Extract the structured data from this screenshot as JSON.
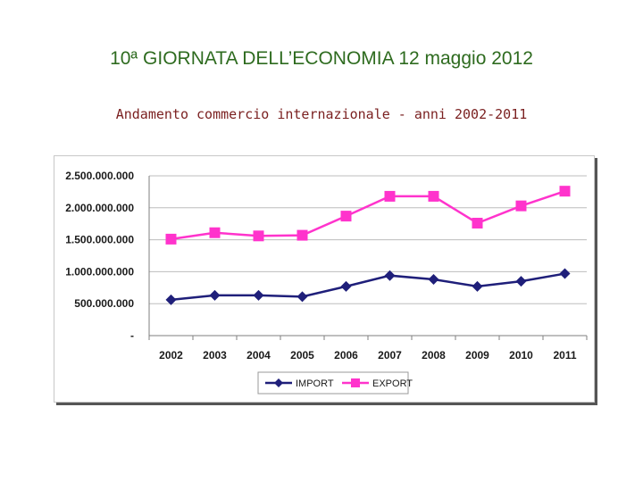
{
  "header": {
    "title": "10ª GIORNATA DELL’ECONOMIA  12 maggio 2012",
    "subtitle": "Andamento commercio internazionale - anni 2002-2011"
  },
  "chart_data": {
    "type": "line",
    "title": "",
    "xlabel": "",
    "ylabel": "",
    "categories": [
      "2002",
      "2003",
      "2004",
      "2005",
      "2006",
      "2007",
      "2008",
      "2009",
      "2010",
      "2011"
    ],
    "ylim": [
      0,
      2500000000
    ],
    "yticks": [
      0,
      500000000,
      1000000000,
      1500000000,
      2000000000,
      2500000000
    ],
    "ytick_labels": [
      "-",
      "500.000.000",
      "1.000.000.000",
      "1.500.000.000",
      "2.000.000.000",
      "2.500.000.000"
    ],
    "grid": true,
    "legend_position": "bottom",
    "series": [
      {
        "name": "IMPORT",
        "color": "#1f1f7a",
        "marker": "diamond",
        "values": [
          560000000,
          630000000,
          630000000,
          610000000,
          770000000,
          940000000,
          880000000,
          770000000,
          850000000,
          970000000
        ]
      },
      {
        "name": "EXPORT",
        "color": "#ff33cc",
        "marker": "square",
        "values": [
          1510000000,
          1610000000,
          1560000000,
          1570000000,
          1870000000,
          2180000000,
          2180000000,
          1760000000,
          2030000000,
          2260000000
        ]
      }
    ]
  }
}
